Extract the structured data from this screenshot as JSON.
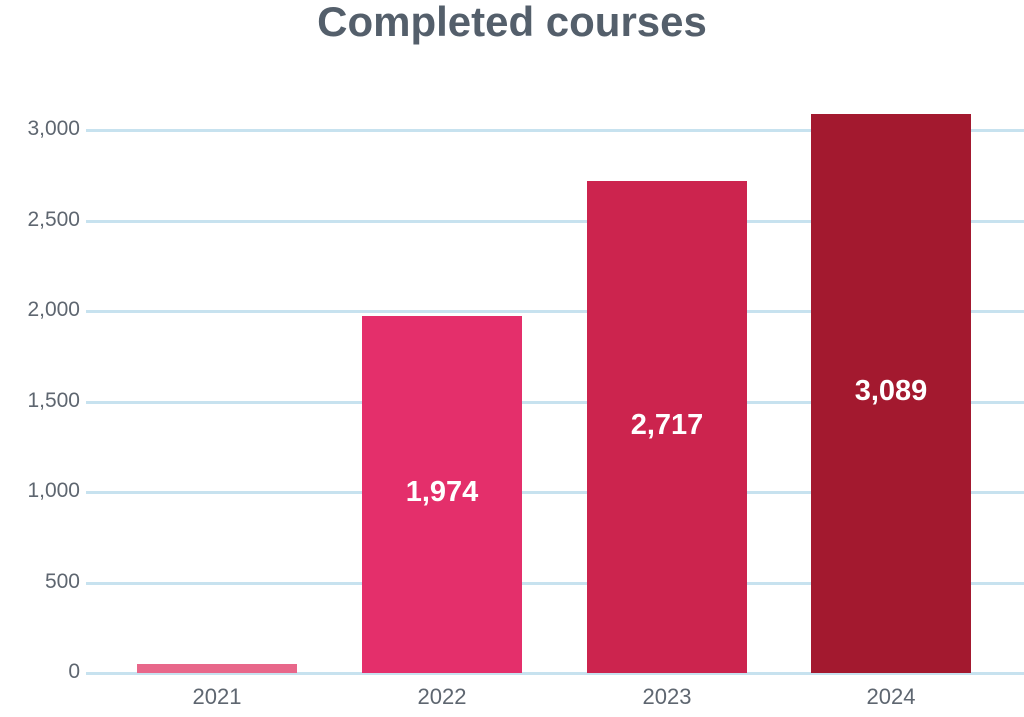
{
  "chart_data": {
    "type": "bar",
    "title": "Completed courses",
    "xlabel": "",
    "ylabel": "",
    "categories": [
      "2021",
      "2022",
      "2023",
      "2024"
    ],
    "values": [
      50,
      1974,
      2717,
      3089
    ],
    "value_labels": [
      "",
      "1,974",
      "2,717",
      "3,089"
    ],
    "colors": [
      "#e8678a",
      "#e42f6b",
      "#cc244e",
      "#a3192f"
    ],
    "ylim": [
      0,
      3000
    ],
    "yticks": [
      "0",
      "500",
      "1,000",
      "1,500",
      "2,000",
      "2,500",
      "3,000"
    ],
    "grid": true,
    "legend": null
  }
}
